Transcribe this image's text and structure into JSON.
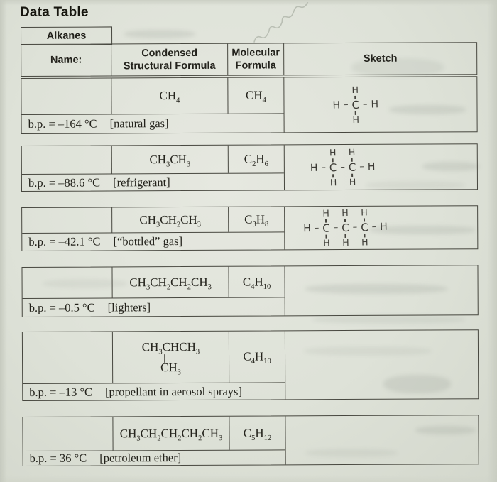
{
  "page_title": "Data Table",
  "table": {
    "group_header": "Alkanes",
    "columns": {
      "name": "Name:",
      "condensed": "Condensed\nStructural Formula",
      "molecular": "Molecular\nFormula",
      "sketch": "Sketch"
    }
  },
  "sketch_symbols": {
    "hydrogen": "H",
    "carbon": "C",
    "single_bond": "–"
  },
  "rows": [
    {
      "condensed_lines": [
        "CH_4"
      ],
      "molecular": "CH_4",
      "bp": "b.p. = –164 °C",
      "use": "[natural gas]",
      "sketch_carbons": 1
    },
    {
      "condensed_lines": [
        "CH_3CH_3"
      ],
      "molecular": "C_2H_6",
      "bp": "b.p. = –88.6 °C",
      "use": "[refrigerant]",
      "sketch_carbons": 2
    },
    {
      "condensed_lines": [
        "CH_3CH_2CH_3"
      ],
      "molecular": "C_3H_8",
      "bp": "b.p. = –42.1 °C",
      "use": "[“bottled” gas]",
      "sketch_carbons": 3
    },
    {
      "condensed_lines": [
        "CH_3CH_2CH_2CH_3"
      ],
      "molecular": "C_4H_10",
      "bp": "b.p. = –0.5 °C",
      "use": "[lighters]",
      "sketch_carbons": 0
    },
    {
      "condensed_lines": [
        "CH_3CHCH_3",
        "|",
        "CH_3"
      ],
      "molecular": "C_4H_10",
      "bp": "b.p. = –13 °C",
      "use": "[propellant in aerosol sprays]",
      "sketch_carbons": 0
    },
    {
      "condensed_lines": [
        "CH_3CH_2CH_2CH_2CH_3"
      ],
      "molecular": "C_5H_12",
      "bp": "b.p. = 36 °C",
      "use": "[petroleum ether]",
      "sketch_carbons": 0
    }
  ]
}
